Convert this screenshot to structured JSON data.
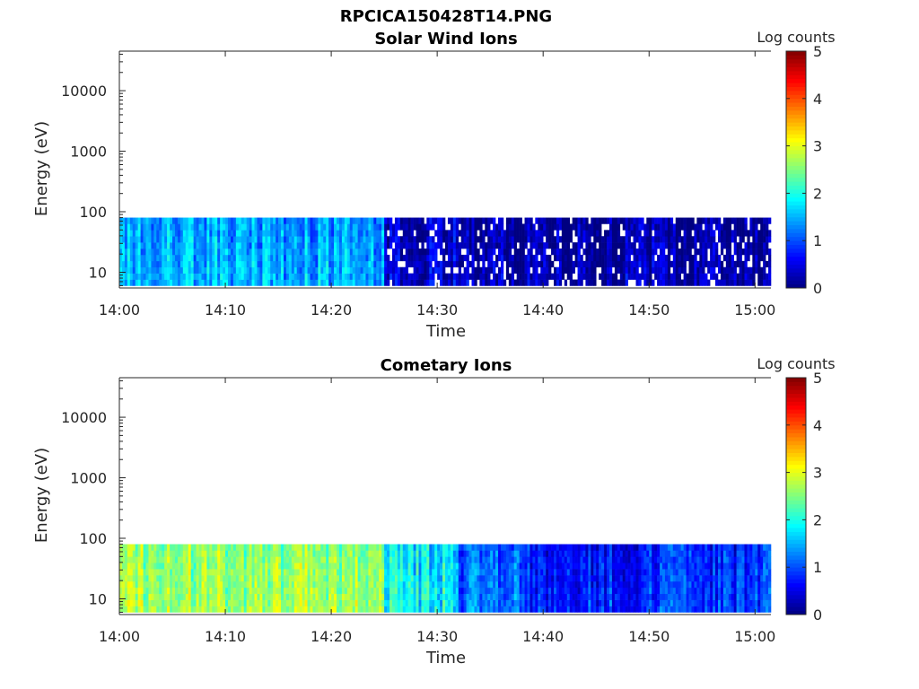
{
  "figure": {
    "title": "RPCICA150428T14.PNG"
  },
  "chart_data": [
    {
      "type": "heatmap",
      "title": "Solar Wind Ions",
      "xlabel": "Time",
      "ylabel": "Energy (eV)",
      "x_ticks": [
        "14:00",
        "14:10",
        "14:20",
        "14:30",
        "14:40",
        "14:50",
        "15:00"
      ],
      "x_range_minutes": [
        0,
        61.5
      ],
      "y_scale": "log",
      "y_ticks": [
        "10",
        "100",
        "1000",
        "10000"
      ],
      "y_range": [
        5.5,
        45000
      ],
      "data_energy_range": [
        6,
        80
      ],
      "colorbar": {
        "label": "Log counts",
        "ticks": [
          "0",
          "1",
          "2",
          "3",
          "4",
          "5"
        ],
        "range": [
          0,
          5
        ],
        "colormap": "jet"
      },
      "intensity_segments": [
        {
          "start_min": 0,
          "end_min": 24.8,
          "log_counts": 1.5
        },
        {
          "start_min": 24.8,
          "end_min": 32,
          "log_counts": 0.45
        },
        {
          "start_min": 32,
          "end_min": 61.5,
          "log_counts": 0.25
        }
      ]
    },
    {
      "type": "heatmap",
      "title": "Cometary Ions",
      "xlabel": "Time",
      "ylabel": "Energy (eV)",
      "x_ticks": [
        "14:00",
        "14:10",
        "14:20",
        "14:30",
        "14:40",
        "14:50",
        "15:00"
      ],
      "x_range_minutes": [
        0,
        61.5
      ],
      "y_scale": "log",
      "y_ticks": [
        "10",
        "100",
        "1000",
        "10000"
      ],
      "y_range": [
        5.5,
        45000
      ],
      "data_energy_range": [
        6,
        80
      ],
      "colorbar": {
        "label": "Log counts",
        "ticks": [
          "0",
          "1",
          "2",
          "3",
          "4",
          "5"
        ],
        "range": [
          0,
          5
        ],
        "colormap": "jet"
      },
      "intensity_segments": [
        {
          "start_min": 0,
          "end_min": 24.8,
          "log_counts": 2.7
        },
        {
          "start_min": 24.8,
          "end_min": 32,
          "log_counts": 1.9
        },
        {
          "start_min": 32,
          "end_min": 38,
          "log_counts": 1.2
        },
        {
          "start_min": 38,
          "end_min": 61.5,
          "log_counts": 0.85
        }
      ]
    }
  ]
}
